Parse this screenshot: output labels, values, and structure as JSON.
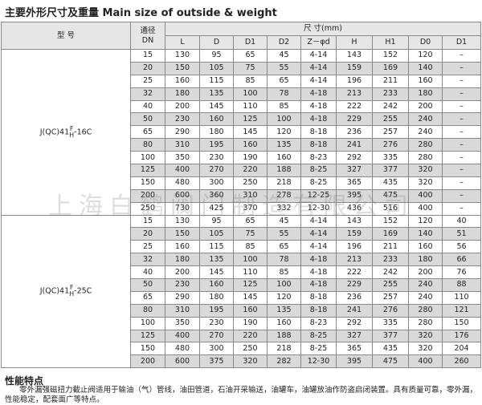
{
  "header": {
    "title": "主要外形尺寸及重量 Main size of outside & weight"
  },
  "watermark": "上海白鹤阀门制造有限公司",
  "table": {
    "head": {
      "model": "型 号",
      "dn": [
        "通径",
        "DN"
      ],
      "size": "尺 寸(mm)",
      "columns": [
        "L",
        "D",
        "D1",
        "D2",
        "Z－φd",
        "H",
        "H1",
        "D0",
        "D1"
      ]
    },
    "groups": [
      {
        "model": {
          "prefix": "J(QC)41",
          "sup": "F",
          "sub": "H",
          "suffix": "-16C"
        },
        "rows": [
          [
            15,
            130,
            95,
            65,
            45,
            "4-14",
            143,
            152,
            120,
            "–"
          ],
          [
            20,
            150,
            105,
            75,
            55,
            "4-14",
            159,
            169,
            140,
            "–"
          ],
          [
            25,
            160,
            115,
            85,
            65,
            "4-14",
            196,
            211,
            160,
            "–"
          ],
          [
            32,
            180,
            135,
            100,
            78,
            "4-18",
            213,
            233,
            180,
            "–"
          ],
          [
            40,
            200,
            145,
            110,
            85,
            "4-18",
            222,
            242,
            200,
            "–"
          ],
          [
            50,
            230,
            160,
            125,
            100,
            "4-18",
            229,
            255,
            240,
            "–"
          ],
          [
            65,
            290,
            180,
            145,
            120,
            "8-18",
            236,
            257,
            240,
            "–"
          ],
          [
            80,
            310,
            195,
            160,
            135,
            "8-18",
            241,
            276,
            280,
            "–"
          ],
          [
            100,
            350,
            230,
            190,
            160,
            "8-23",
            292,
            335,
            280,
            "–"
          ],
          [
            125,
            400,
            270,
            220,
            188,
            "8-25",
            327,
            377,
            320,
            "–"
          ],
          [
            150,
            480,
            300,
            250,
            218,
            "8-25",
            365,
            435,
            320,
            "–"
          ],
          [
            200,
            600,
            360,
            310,
            278,
            "12-25",
            395,
            475,
            400,
            "–"
          ],
          [
            250,
            730,
            425,
            370,
            332,
            "12-30",
            436,
            516,
            400,
            "–"
          ]
        ]
      },
      {
        "model": {
          "prefix": "J(QC)41",
          "sup": "F",
          "sub": "H",
          "suffix": "-25C"
        },
        "rows": [
          [
            15,
            130,
            95,
            65,
            45,
            "4-14",
            143,
            152,
            120,
            40
          ],
          [
            20,
            150,
            105,
            75,
            55,
            "4-14",
            159,
            169,
            140,
            51
          ],
          [
            25,
            160,
            115,
            85,
            65,
            "4-14",
            196,
            211,
            160,
            56
          ],
          [
            32,
            180,
            135,
            100,
            78,
            "4-18",
            213,
            233,
            180,
            66
          ],
          [
            40,
            200,
            145,
            110,
            85,
            "4-18",
            222,
            242,
            200,
            76
          ],
          [
            50,
            230,
            160,
            125,
            100,
            "4-18",
            229,
            255,
            240,
            88
          ],
          [
            65,
            290,
            180,
            145,
            120,
            "8-18",
            236,
            257,
            240,
            110
          ],
          [
            80,
            310,
            195,
            160,
            135,
            "8-18",
            241,
            276,
            280,
            121
          ],
          [
            100,
            350,
            230,
            190,
            160,
            "8-23",
            292,
            335,
            280,
            150
          ],
          [
            125,
            400,
            270,
            220,
            188,
            "8-25",
            327,
            377,
            320,
            176
          ],
          [
            150,
            480,
            300,
            250,
            218,
            "8-25",
            365,
            435,
            320,
            204
          ],
          [
            200,
            600,
            375,
            320,
            282,
            "12-30",
            395,
            475,
            400,
            260
          ]
        ]
      }
    ]
  },
  "features": {
    "title": "性能特点",
    "text": "零外漏强磁扭力截止阀适用于输油（气）管线，油田管道，石油开采输送，油罐车，油罐放油作防盗启闭装置。具有质量可靠，零外漏，性能稳定，配套面广等特点。"
  }
}
